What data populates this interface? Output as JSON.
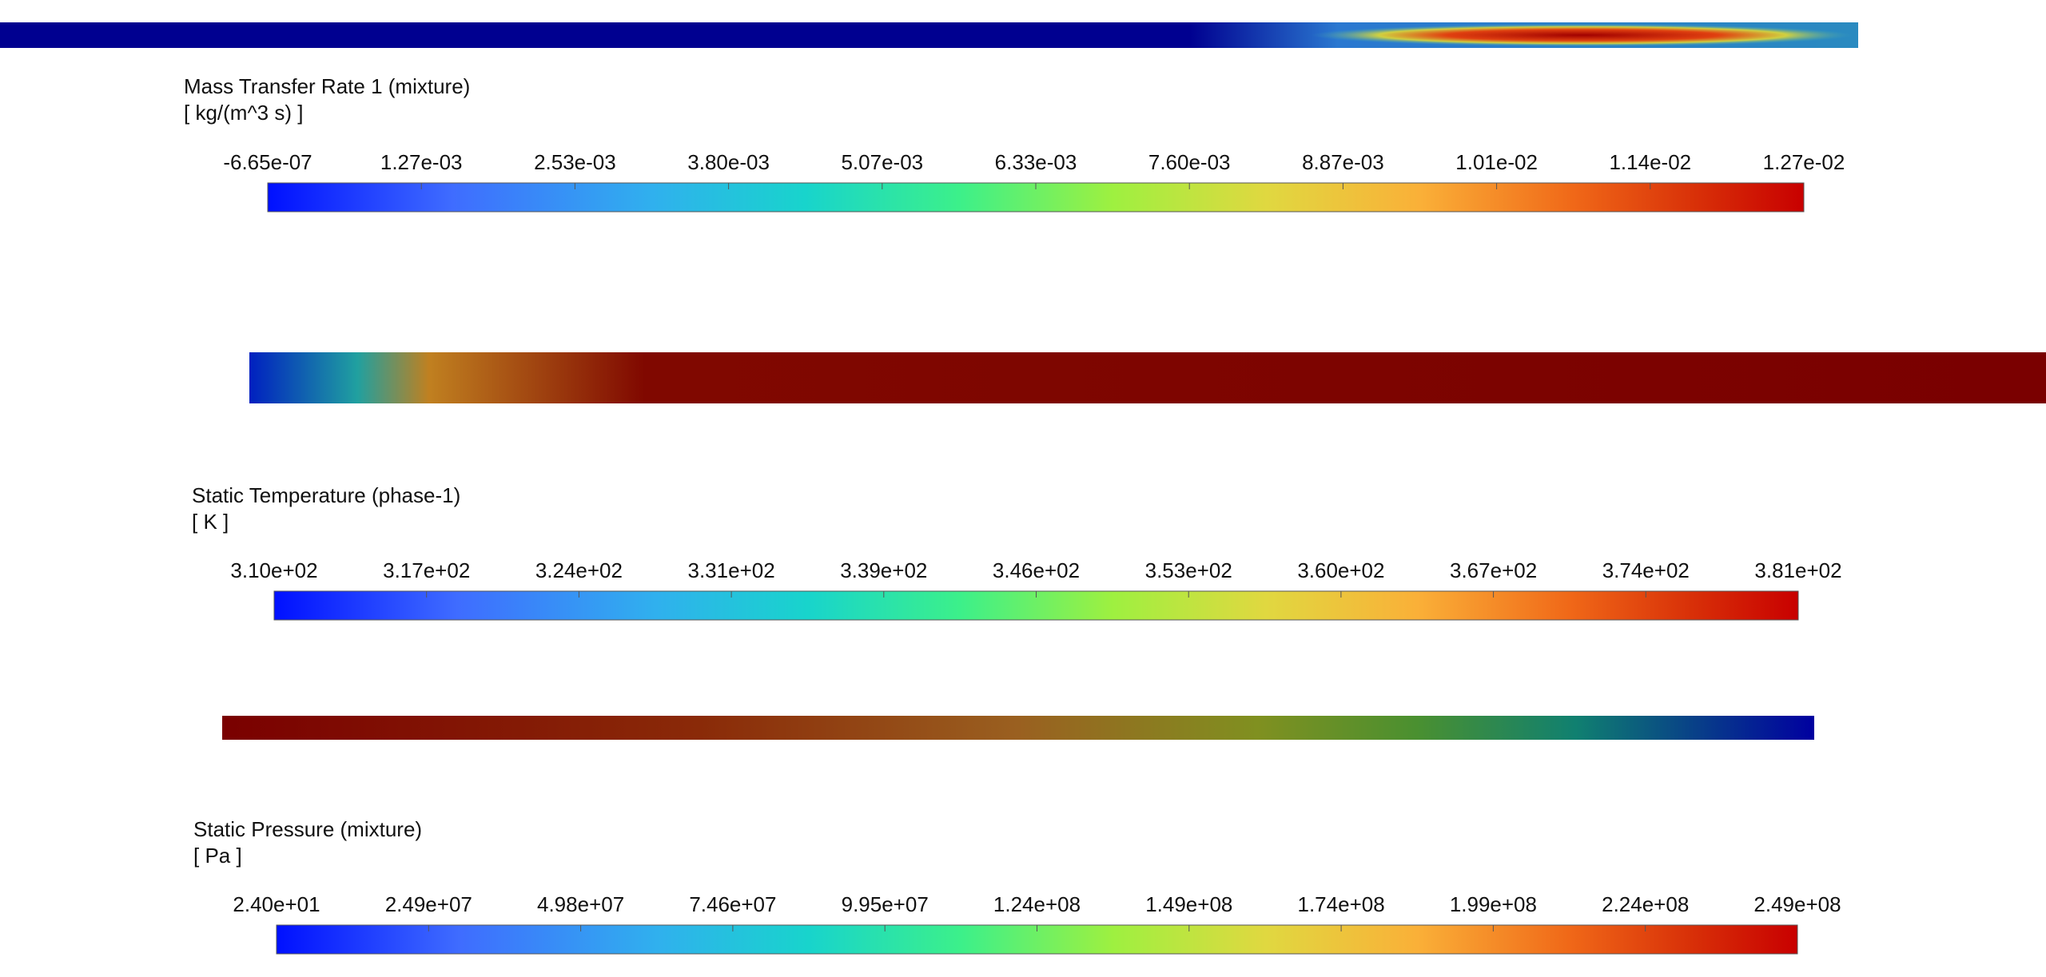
{
  "panels": [
    {
      "title": "Mass Transfer Rate 1 (mixture)",
      "unit": "[ kg/(m^3 s) ]",
      "ticks": [
        "-6.65e-07",
        "1.27e-03",
        "2.53e-03",
        "3.80e-03",
        "5.07e-03",
        "6.33e-03",
        "7.60e-03",
        "8.87e-03",
        "1.01e-02",
        "1.14e-02",
        "1.27e-02"
      ]
    },
    {
      "title": "Static Temperature (phase-1)",
      "unit": "[ K ]",
      "ticks": [
        "3.10e+02",
        "3.17e+02",
        "3.24e+02",
        "3.31e+02",
        "3.39e+02",
        "3.46e+02",
        "3.53e+02",
        "3.60e+02",
        "3.67e+02",
        "3.74e+02",
        "3.81e+02"
      ]
    },
    {
      "title": "Static Pressure (mixture)",
      "unit": "[ Pa ]",
      "ticks": [
        "2.40e+01",
        "2.49e+07",
        "4.98e+07",
        "7.46e+07",
        "9.95e+07",
        "1.24e+08",
        "1.49e+08",
        "1.74e+08",
        "1.99e+08",
        "2.24e+08",
        "2.49e+08"
      ]
    }
  ]
}
